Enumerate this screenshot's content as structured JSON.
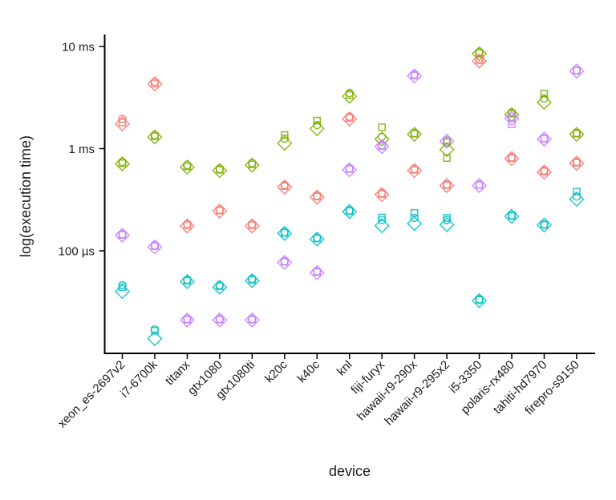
{
  "chart_data": {
    "type": "scatter",
    "title": "",
    "xlabel": "device",
    "ylabel": "log(execution time)",
    "y_scale": "log",
    "grid": false,
    "legend_position": "none",
    "y_ticks": [
      {
        "label": "10 ms",
        "ms": 10
      },
      {
        "label": "1 ms",
        "ms": 1
      },
      {
        "label": "100 µs",
        "ms": 0.1
      }
    ],
    "y_range_ms": [
      0.012,
      12
    ],
    "shape_order": [
      "circle",
      "square",
      "diamond"
    ],
    "series_colors": {
      "red": "#F8766D",
      "green": "#7CAE00",
      "cyan": "#00BFC4",
      "purple": "#C77CFF"
    },
    "devices": [
      "xeon_es-2697v2",
      "i7-6700k",
      "titanx",
      "gtx1080",
      "gtx1080ti",
      "k20c",
      "k40c",
      "knl",
      "fiji-furyx",
      "hawaii-r9-290x",
      "hawaii-r9-295x2",
      "i5-3350",
      "polaris-rx480",
      "tahiti-hd7970",
      "firepro-s9150"
    ],
    "points": [
      {
        "device": "xeon_es-2697v2",
        "series": [
          {
            "color": "red",
            "ms": [
              1.95,
              1.8,
              1.75
            ]
          },
          {
            "color": "green",
            "ms": [
              0.74,
              0.72,
              0.71
            ]
          },
          {
            "color": "purple",
            "ms": [
              0.145,
              0.143,
              0.142
            ]
          },
          {
            "color": "cyan",
            "ms": [
              0.046,
              0.044,
              0.04
            ]
          }
        ]
      },
      {
        "device": "i7-6700k",
        "series": [
          {
            "color": "red",
            "ms": [
              4.5,
              4.35,
              4.3
            ]
          },
          {
            "color": "green",
            "ms": [
              1.35,
              1.32,
              1.3
            ]
          },
          {
            "color": "purple",
            "ms": [
              0.113,
              0.111,
              0.109
            ]
          },
          {
            "color": "cyan",
            "ms": [
              0.017,
              0.0165,
              0.0138
            ]
          }
        ]
      },
      {
        "device": "titanx",
        "series": [
          {
            "color": "green",
            "ms": [
              0.69,
              0.67,
              0.66
            ]
          },
          {
            "color": "red",
            "ms": [
              0.182,
              0.178,
              0.175
            ]
          },
          {
            "color": "cyan",
            "ms": [
              0.052,
              0.051,
              0.05
            ]
          },
          {
            "color": "purple",
            "ms": [
              0.0215,
              0.0212,
              0.021
            ]
          }
        ]
      },
      {
        "device": "gtx1080",
        "series": [
          {
            "color": "green",
            "ms": [
              0.63,
              0.62,
              0.61
            ]
          },
          {
            "color": "red",
            "ms": [
              0.252,
              0.248,
              0.245
            ]
          },
          {
            "color": "cyan",
            "ms": [
              0.046,
              0.045,
              0.044
            ]
          },
          {
            "color": "purple",
            "ms": [
              0.0215,
              0.0212,
              0.021
            ]
          }
        ]
      },
      {
        "device": "gtx1080ti",
        "series": [
          {
            "color": "green",
            "ms": [
              0.72,
              0.7,
              0.69
            ]
          },
          {
            "color": "red",
            "ms": [
              0.182,
              0.178,
              0.175
            ]
          },
          {
            "color": "cyan",
            "ms": [
              0.053,
              0.052,
              0.051
            ]
          },
          {
            "color": "purple",
            "ms": [
              0.0215,
              0.0212,
              0.021
            ]
          }
        ]
      },
      {
        "device": "k20c",
        "series": [
          {
            "color": "green",
            "ms": [
              1.25,
              1.36,
              1.13
            ]
          },
          {
            "color": "red",
            "ms": [
              0.44,
              0.43,
              0.42
            ]
          },
          {
            "color": "cyan",
            "ms": [
              0.152,
              0.15,
              0.148
            ]
          },
          {
            "color": "purple",
            "ms": [
              0.079,
              0.078,
              0.077
            ]
          }
        ]
      },
      {
        "device": "k40c",
        "series": [
          {
            "color": "green",
            "ms": [
              1.7,
              1.88,
              1.57
            ]
          },
          {
            "color": "red",
            "ms": [
              0.345,
              0.34,
              0.335
            ]
          },
          {
            "color": "cyan",
            "ms": [
              0.134,
              0.132,
              0.13
            ]
          },
          {
            "color": "purple",
            "ms": [
              0.063,
              0.062,
              0.061
            ]
          }
        ]
      },
      {
        "device": "knl",
        "series": [
          {
            "color": "green",
            "ms": [
              3.5,
              3.35,
              3.25
            ]
          },
          {
            "color": "red",
            "ms": [
              2.05,
              2.0,
              1.95
            ]
          },
          {
            "color": "purple",
            "ms": [
              0.64,
              0.63,
              0.62
            ]
          },
          {
            "color": "cyan",
            "ms": [
              0.248,
              0.245,
              0.242
            ]
          }
        ]
      },
      {
        "device": "fiji-furyx",
        "series": [
          {
            "color": "green",
            "ms": [
              1.3,
              1.62,
              1.24
            ]
          },
          {
            "color": "purple",
            "ms": [
              1.08,
              1.06,
              1.05
            ]
          },
          {
            "color": "red",
            "ms": [
              0.365,
              0.36,
              0.355
            ]
          },
          {
            "color": "cyan",
            "ms": [
              0.2,
              0.212,
              0.176
            ]
          }
        ]
      },
      {
        "device": "hawaii-r9-290x",
        "series": [
          {
            "color": "purple",
            "ms": [
              5.3,
              5.2,
              5.15
            ]
          },
          {
            "color": "green",
            "ms": [
              1.42,
              1.4,
              1.38
            ]
          },
          {
            "color": "red",
            "ms": [
              0.63,
              0.62,
              0.61
            ]
          },
          {
            "color": "cyan",
            "ms": [
              0.21,
              0.235,
              0.185
            ]
          }
        ]
      },
      {
        "device": "hawaii-r9-295x2",
        "series": [
          {
            "color": "purple",
            "ms": [
              1.21,
              1.19,
              1.18
            ]
          },
          {
            "color": "green",
            "ms": [
              1.15,
              0.81,
              0.98
            ]
          },
          {
            "color": "red",
            "ms": [
              0.445,
              0.44,
              0.435
            ]
          },
          {
            "color": "cyan",
            "ms": [
              0.2,
              0.21,
              0.18
            ]
          }
        ]
      },
      {
        "device": "i5-3350",
        "series": [
          {
            "color": "green",
            "ms": [
              8.8,
              8.6,
              8.5
            ]
          },
          {
            "color": "red",
            "ms": [
              7.6,
              7.3,
              7.2
            ]
          },
          {
            "color": "purple",
            "ms": [
              0.445,
              0.44,
              0.435
            ]
          },
          {
            "color": "cyan",
            "ms": [
              0.0335,
              0.033,
              0.0325
            ]
          }
        ]
      },
      {
        "device": "polaris-rx480",
        "series": [
          {
            "color": "green",
            "ms": [
              2.25,
              2.2,
              2.15
            ]
          },
          {
            "color": "purple",
            "ms": [
              2.0,
              1.73,
              1.98
            ]
          },
          {
            "color": "red",
            "ms": [
              0.82,
              0.81,
              0.8
            ]
          },
          {
            "color": "cyan",
            "ms": [
              0.222,
              0.22,
              0.218
            ]
          }
        ]
      },
      {
        "device": "tahiti-hd7970",
        "series": [
          {
            "color": "green",
            "ms": [
              3.1,
              3.46,
              2.84
            ]
          },
          {
            "color": "purple",
            "ms": [
              1.26,
              1.25,
              1.24
            ]
          },
          {
            "color": "red",
            "ms": [
              0.61,
              0.6,
              0.59
            ]
          },
          {
            "color": "cyan",
            "ms": [
              0.181,
              0.18,
              0.179
            ]
          }
        ]
      },
      {
        "device": "firepro-s9150",
        "series": [
          {
            "color": "purple",
            "ms": [
              5.85,
              5.8,
              5.75
            ]
          },
          {
            "color": "green",
            "ms": [
              1.42,
              1.4,
              1.38
            ]
          },
          {
            "color": "red",
            "ms": [
              0.74,
              0.73,
              0.72
            ]
          },
          {
            "color": "cyan",
            "ms": [
              0.34,
              0.38,
              0.32
            ]
          }
        ]
      }
    ]
  }
}
